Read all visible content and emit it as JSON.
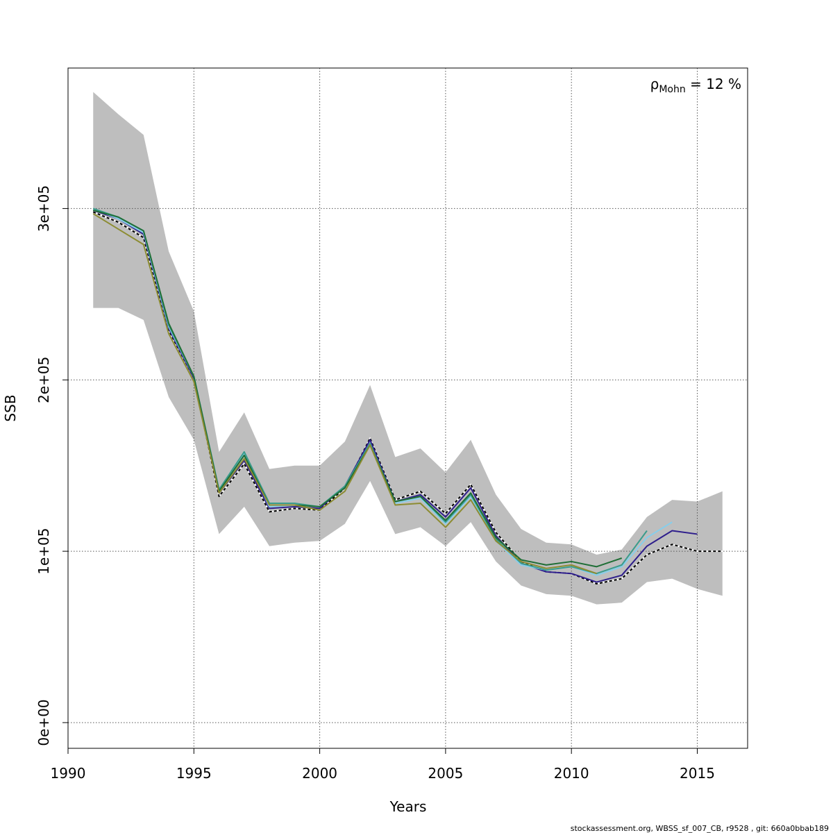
{
  "chart_data": {
    "type": "line",
    "xlabel": "Years",
    "ylabel": "SSB",
    "xlim": [
      1990,
      2017
    ],
    "ylim": [
      -15000,
      382000
    ],
    "xticks": [
      1990,
      1995,
      2000,
      2005,
      2010,
      2015
    ],
    "xtick_labels": [
      "1990",
      "1995",
      "2000",
      "2005",
      "2010",
      "2015"
    ],
    "yticks": [
      0,
      100000,
      200000,
      300000
    ],
    "ytick_labels": [
      "0e+00",
      "1e+05",
      "2e+05",
      "3e+05"
    ],
    "grid": true,
    "annotation": {
      "rho_symbol": "ρ",
      "subscript": "Mohn",
      "text": " = 12 %"
    },
    "confidence_band": {
      "color": "#bebebe",
      "x": [
        1991,
        1992,
        1993,
        1994,
        1995,
        1996,
        1997,
        1998,
        1999,
        2000,
        2001,
        2002,
        2003,
        2004,
        2005,
        2006,
        2007,
        2008,
        2009,
        2010,
        2011,
        2012,
        2013,
        2014,
        2015,
        2016
      ],
      "upper": [
        368000,
        355000,
        343000,
        275000,
        240000,
        158000,
        181000,
        148000,
        150000,
        150000,
        164000,
        197000,
        155000,
        160000,
        146000,
        165000,
        133000,
        113000,
        105000,
        104000,
        98000,
        101000,
        120000,
        130000,
        129000,
        135000
      ],
      "lower": [
        242000,
        242000,
        235000,
        190000,
        165000,
        110000,
        126000,
        103000,
        105000,
        106000,
        116000,
        141000,
        110000,
        114000,
        103000,
        117000,
        94000,
        80000,
        75000,
        74000,
        69000,
        70000,
        82000,
        84000,
        78000,
        74000
      ]
    },
    "series": [
      {
        "color": "#000000",
        "dashed": true,
        "x": [
          1991,
          1992,
          1993,
          1994,
          1995,
          1996,
          1997,
          1998,
          1999,
          2000,
          2001,
          2002,
          2003,
          2004,
          2005,
          2006,
          2007,
          2008,
          2009,
          2010,
          2011,
          2012,
          2013,
          2014,
          2015,
          2016
        ],
        "values": [
          298000,
          292000,
          283000,
          229000,
          201000,
          132000,
          151000,
          123000,
          125000,
          124000,
          137000,
          166000,
          130000,
          135000,
          122000,
          139000,
          111000,
          94000,
          88000,
          87000,
          81000,
          84000,
          98000,
          104000,
          100000,
          100000
        ]
      },
      {
        "color": "#2e1e8c",
        "dashed": false,
        "x": [
          1991,
          1992,
          1993,
          1994,
          1995,
          1996,
          1997,
          1998,
          1999,
          2000,
          2001,
          2002,
          2003,
          2004,
          2005,
          2006,
          2007,
          2008,
          2009,
          2010,
          2011,
          2012,
          2013,
          2014,
          2015
        ],
        "values": [
          299000,
          294000,
          285000,
          230000,
          201000,
          134000,
          153000,
          125000,
          126000,
          125000,
          138000,
          165000,
          129000,
          133000,
          120000,
          137000,
          109000,
          93000,
          88000,
          87000,
          82000,
          86000,
          103000,
          112000,
          110000
        ]
      },
      {
        "color": "#87ceeb",
        "dashed": false,
        "x": [
          1991,
          1992,
          1993,
          1994,
          1995,
          1996,
          1997,
          1998,
          1999,
          2000,
          2001,
          2002,
          2003,
          2004,
          2005,
          2006,
          2007,
          2008,
          2009,
          2010,
          2011,
          2012,
          2013,
          2014
        ],
        "values": [
          300000,
          294000,
          286000,
          231000,
          202000,
          135000,
          157000,
          126000,
          127000,
          126000,
          138000,
          163000,
          128000,
          131000,
          116000,
          132000,
          106000,
          92000,
          89000,
          91000,
          86000,
          91000,
          108000,
          117000
        ]
      },
      {
        "color": "#3a9c8c",
        "dashed": false,
        "x": [
          1991,
          1992,
          1993,
          1994,
          1995,
          1996,
          1997,
          1998,
          1999,
          2000,
          2001,
          2002,
          2003,
          2004,
          2005,
          2006,
          2007,
          2008,
          2009,
          2010,
          2011,
          2012,
          2013
        ],
        "values": [
          300000,
          295000,
          287000,
          232000,
          202000,
          136000,
          158000,
          128000,
          128000,
          126000,
          138000,
          163000,
          129000,
          132000,
          117000,
          133000,
          107000,
          93000,
          89000,
          91000,
          87000,
          92000,
          112000
        ]
      },
      {
        "color": "#1f6e36",
        "dashed": false,
        "x": [
          1991,
          1992,
          1993,
          1994,
          1995,
          1996,
          1997,
          1998,
          1999,
          2000,
          2001,
          2002,
          2003,
          2004,
          2005,
          2006,
          2007,
          2008,
          2009,
          2010,
          2011,
          2012
        ],
        "values": [
          299000,
          295000,
          287000,
          233000,
          202000,
          135000,
          156000,
          127000,
          127000,
          126000,
          137000,
          162000,
          129000,
          132000,
          118000,
          134000,
          108000,
          95000,
          92000,
          94000,
          91000,
          96000
        ]
      },
      {
        "color": "#8c8c32",
        "dashed": false,
        "x": [
          1991,
          1992,
          1993,
          1994,
          1995,
          1996,
          1997,
          1998,
          1999,
          2000,
          2001,
          2002,
          2003,
          2004,
          2005,
          2006,
          2007,
          2008,
          2009,
          2010,
          2011
        ],
        "values": [
          297000,
          288000,
          279000,
          227000,
          199000,
          134000,
          154000,
          127000,
          127000,
          124000,
          135000,
          162000,
          127000,
          128000,
          114000,
          130000,
          106000,
          94000,
          90000,
          92000,
          87000
        ]
      }
    ]
  },
  "footer": "stockassessment.org, WBSS_sf_007_CB, r9528 , git: 660a0bbab189"
}
